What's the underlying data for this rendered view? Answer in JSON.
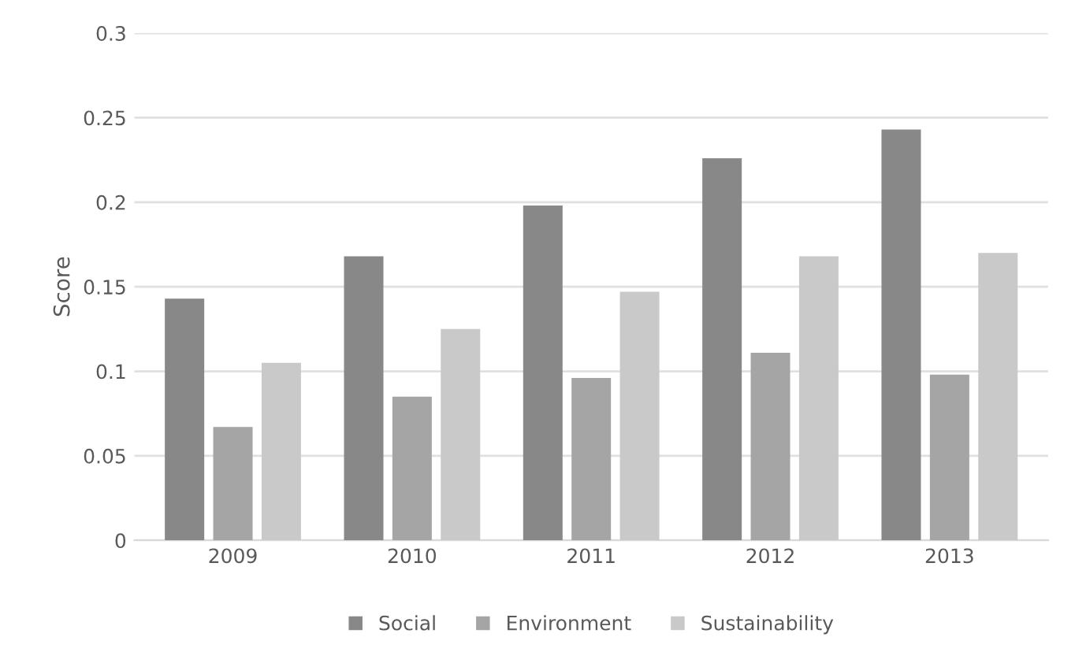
{
  "chart_data": {
    "type": "bar",
    "ylabel": "Score",
    "categories": [
      "2009",
      "2010",
      "2011",
      "2012",
      "2013"
    ],
    "series": [
      {
        "name": "Social",
        "color": "#888888",
        "values": [
          0.143,
          0.168,
          0.198,
          0.226,
          0.243
        ]
      },
      {
        "name": "Environment",
        "color": "#a5a5a5",
        "values": [
          0.067,
          0.085,
          0.096,
          0.111,
          0.098
        ]
      },
      {
        "name": "Sustainability",
        "color": "#c9c9c9",
        "values": [
          0.105,
          0.125,
          0.147,
          0.168,
          0.17
        ]
      }
    ],
    "ylim": [
      0,
      0.3
    ],
    "yticks": [
      0,
      0.05,
      0.1,
      0.15,
      0.2,
      0.25,
      0.3
    ],
    "grid": "y",
    "legend": "bottom"
  }
}
